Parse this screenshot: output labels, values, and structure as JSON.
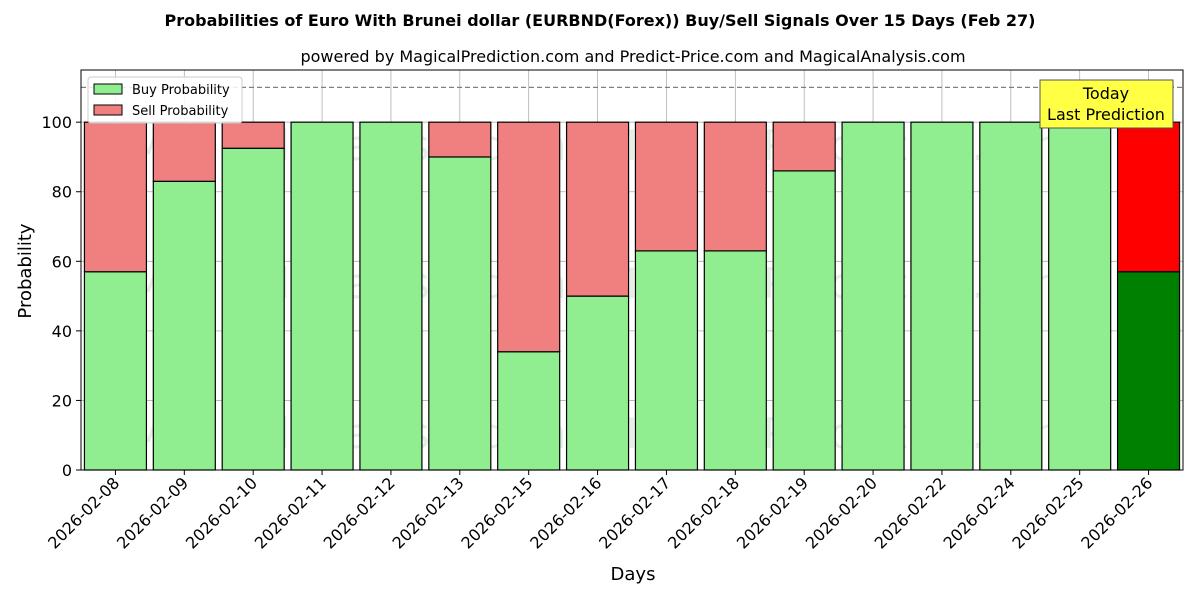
{
  "chart_data": {
    "type": "bar",
    "stacked": true,
    "title": "Probabilities of Euro With Brunei dollar (EURBND(Forex)) Buy/Sell Signals Over 15 Days (Feb 27)",
    "subtitle": "powered by MagicalPrediction.com and Predict-Price.com and MagicalAnalysis.com",
    "xlabel": "Days",
    "ylabel": "Probability",
    "ylim": [
      0,
      115
    ],
    "yticks": [
      0,
      20,
      40,
      60,
      80,
      100
    ],
    "grid": true,
    "legend_position": "top-left",
    "reference_line": 110,
    "categories": [
      "2026-02-08",
      "2026-02-09",
      "2026-02-10",
      "2026-02-11",
      "2026-02-12",
      "2026-02-13",
      "2026-02-15",
      "2026-02-16",
      "2026-02-17",
      "2026-02-18",
      "2026-02-19",
      "2026-02-20",
      "2026-02-22",
      "2026-02-24",
      "2026-02-25",
      "2026-02-26"
    ],
    "series": [
      {
        "name": "Buy Probability",
        "color": "#90ee90",
        "values": [
          57,
          83,
          92.5,
          100,
          100,
          90,
          34,
          50,
          63,
          63,
          86,
          100,
          100,
          100,
          100,
          57
        ]
      },
      {
        "name": "Sell Probability",
        "color": "#f08080",
        "values": [
          43,
          17,
          7.5,
          0,
          0,
          10,
          66,
          50,
          37,
          37,
          14,
          0,
          0,
          0,
          0,
          43
        ]
      }
    ],
    "highlight": {
      "index": 15,
      "buy_color": "#008000",
      "sell_color": "#ff0000",
      "annotation": [
        "Today",
        "Last Prediction"
      ],
      "annotation_bg": "#ffff44"
    },
    "watermarks": [
      "MagicalAnalysis.com",
      "MagicalPrediction.com"
    ]
  }
}
